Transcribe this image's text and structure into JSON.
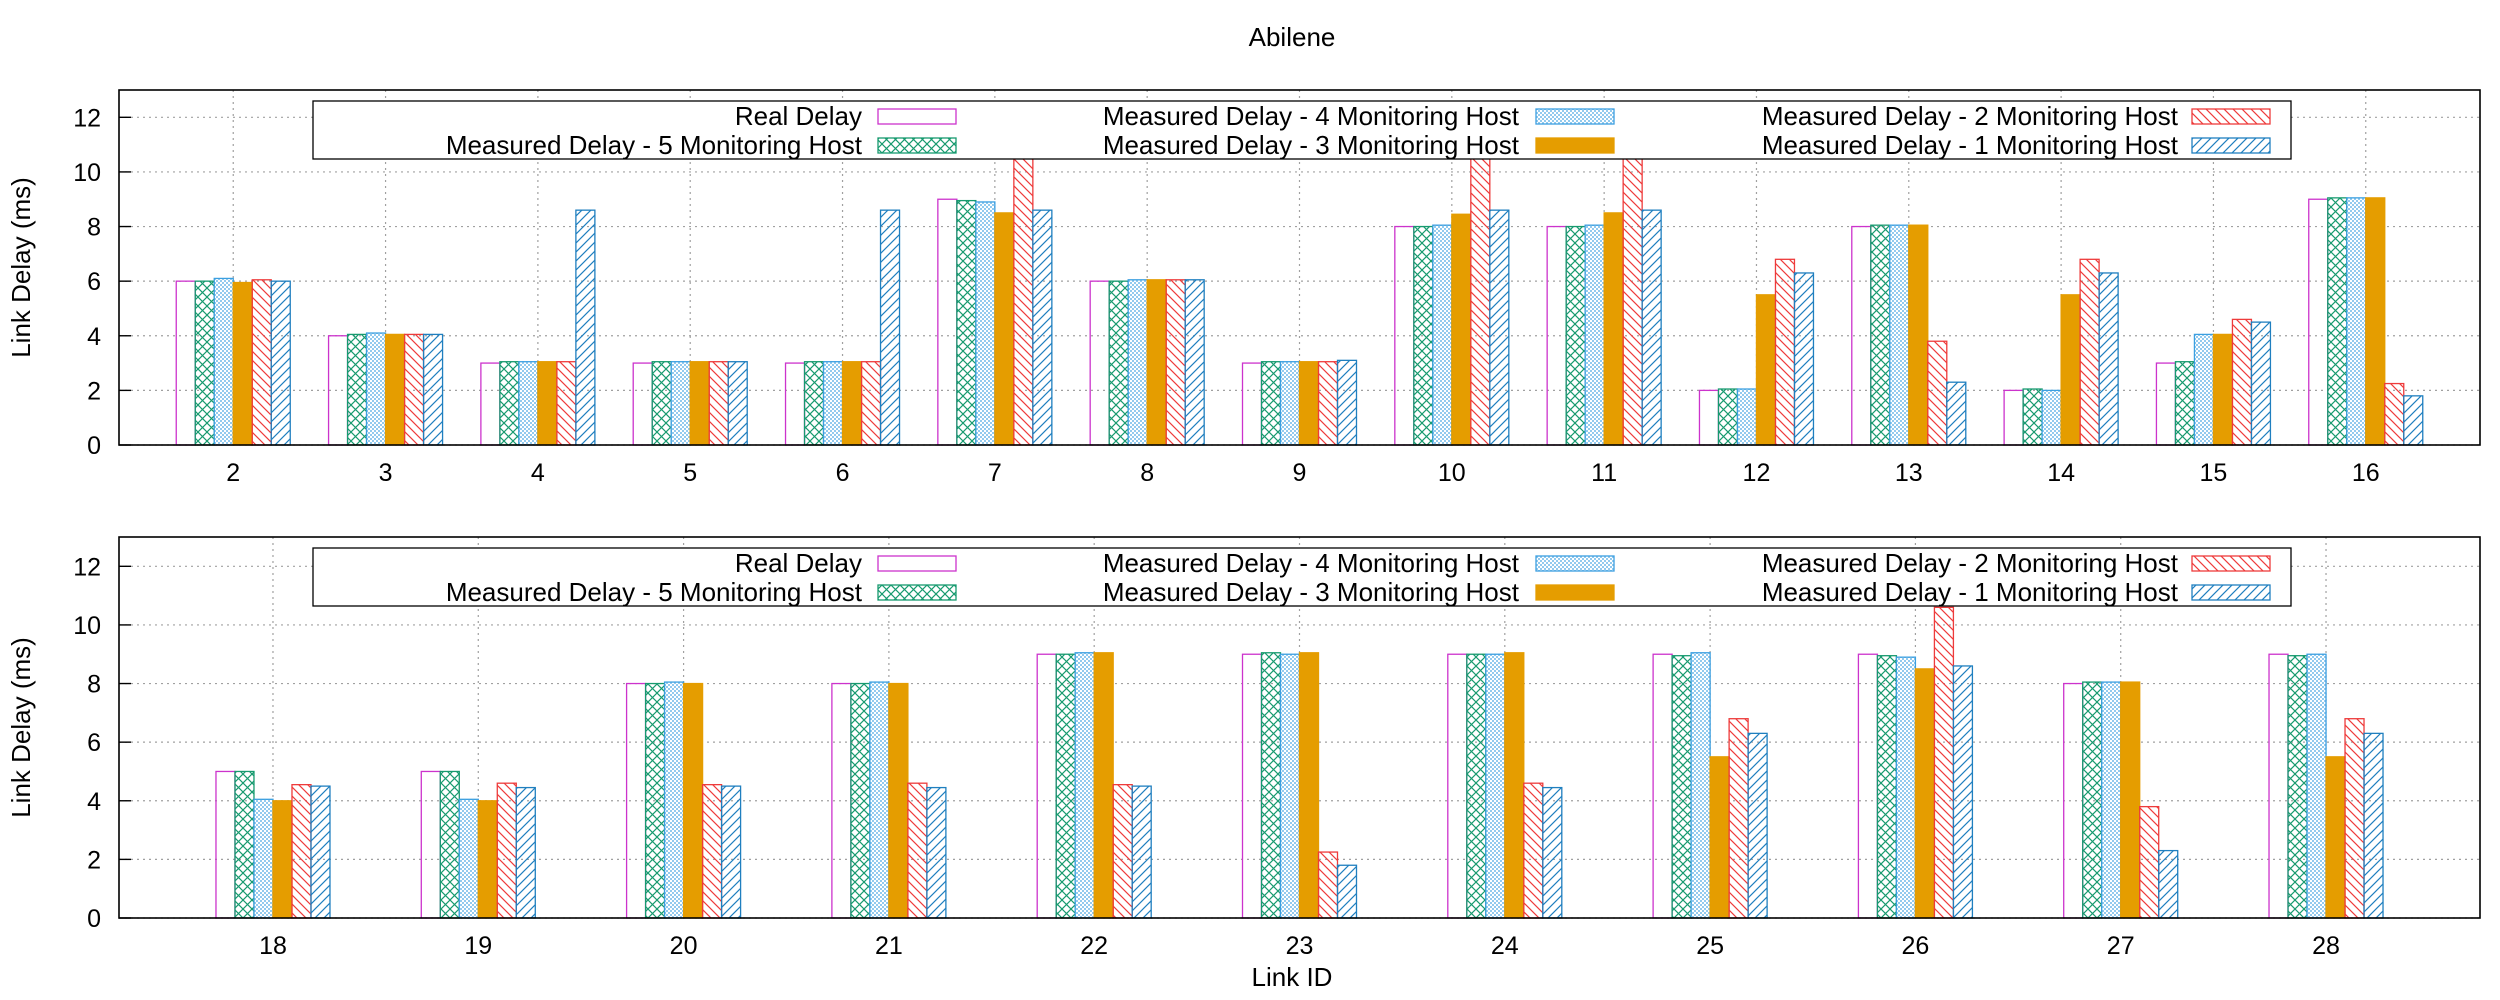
{
  "chart_data": {
    "type": "bar",
    "title": "Abilene",
    "xlabel": "Link ID",
    "colors": {
      "real": "#cc33cc",
      "m5": "#179a6f",
      "m4": "#3b9fe0",
      "m3": "#e59d00",
      "m2": "#ee3b3b",
      "m1": "#1f7fbf"
    },
    "series_styles": [
      "outline",
      "crosshatch",
      "dots",
      "solid",
      "hatch-down",
      "hatch-up"
    ],
    "legend_position": "top-center",
    "grid": true,
    "panels": [
      {
        "ylabel": "Link Delay (ms)",
        "ylim": [
          0,
          13
        ],
        "yticks": [
          0,
          2,
          4,
          6,
          8,
          10,
          12
        ],
        "categories": [
          "2",
          "3",
          "4",
          "5",
          "6",
          "7",
          "8",
          "9",
          "10",
          "11",
          "12",
          "13",
          "14",
          "15",
          "16"
        ],
        "series": [
          {
            "name": "Real Delay",
            "values": [
              6,
              4,
              3,
              3,
              3,
              9,
              6,
              3,
              8,
              8,
              2,
              8,
              2,
              3,
              9
            ]
          },
          {
            "name": "Measured Delay - 5 Monitoring Host",
            "values": [
              6,
              4.05,
              3.05,
              3.05,
              3.05,
              8.95,
              6,
              3.05,
              8,
              8,
              2.05,
              8.05,
              2.05,
              3.05,
              9.05
            ]
          },
          {
            "name": "Measured Delay - 4 Monitoring Host",
            "values": [
              6.1,
              4.1,
              3.05,
              3.05,
              3.05,
              8.9,
              6.05,
              3.05,
              8.05,
              8.05,
              2.05,
              8.05,
              2,
              4.05,
              9.05
            ]
          },
          {
            "name": "Measured Delay - 3 Monitoring Host",
            "values": [
              5.95,
              4.05,
              3.05,
              3.05,
              3.05,
              8.5,
              6.05,
              3.05,
              8.45,
              8.5,
              5.5,
              8.05,
              5.5,
              4.05,
              9.05
            ]
          },
          {
            "name": "Measured Delay - 2 Monitoring Host",
            "values": [
              6.05,
              4.05,
              3.05,
              3.05,
              3.05,
              10.6,
              6.05,
              3.05,
              10.6,
              10.6,
              6.8,
              3.8,
              6.8,
              4.6,
              2.25
            ]
          },
          {
            "name": "Measured Delay - 1 Monitoring Host",
            "values": [
              6,
              4.05,
              8.6,
              3.05,
              8.6,
              8.6,
              6.05,
              3.1,
              8.6,
              8.6,
              6.3,
              2.3,
              6.3,
              4.5,
              1.8
            ]
          }
        ]
      },
      {
        "ylabel": "Link Delay (ms)",
        "ylim": [
          0,
          13
        ],
        "yticks": [
          0,
          2,
          4,
          6,
          8,
          10,
          12
        ],
        "categories": [
          "18",
          "19",
          "20",
          "21",
          "22",
          "23",
          "24",
          "25",
          "26",
          "27",
          "28"
        ],
        "series": [
          {
            "name": "Real Delay",
            "values": [
              5,
              5,
              8,
              8,
              9,
              9,
              9,
              9,
              9,
              8,
              9
            ]
          },
          {
            "name": "Measured Delay - 5 Monitoring Host",
            "values": [
              5,
              5,
              8,
              8,
              9,
              9.05,
              9,
              8.95,
              8.95,
              8.05,
              8.95
            ]
          },
          {
            "name": "Measured Delay - 4 Monitoring Host",
            "values": [
              4.05,
              4.05,
              8.05,
              8.05,
              9.05,
              9,
              9,
              9.05,
              8.9,
              8.05,
              9
            ]
          },
          {
            "name": "Measured Delay - 3 Monitoring Host",
            "values": [
              4,
              4,
              8,
              8,
              9.05,
              9.05,
              9.05,
              5.5,
              8.5,
              8.05,
              5.5
            ]
          },
          {
            "name": "Measured Delay - 2 Monitoring Host",
            "values": [
              4.55,
              4.6,
              4.55,
              4.6,
              4.55,
              2.25,
              4.6,
              6.8,
              10.6,
              3.8,
              6.8
            ]
          },
          {
            "name": "Measured Delay - 1 Monitoring Host",
            "values": [
              4.5,
              4.45,
              4.5,
              4.45,
              4.5,
              1.8,
              4.45,
              6.3,
              8.6,
              2.3,
              6.3
            ]
          }
        ]
      }
    ]
  }
}
